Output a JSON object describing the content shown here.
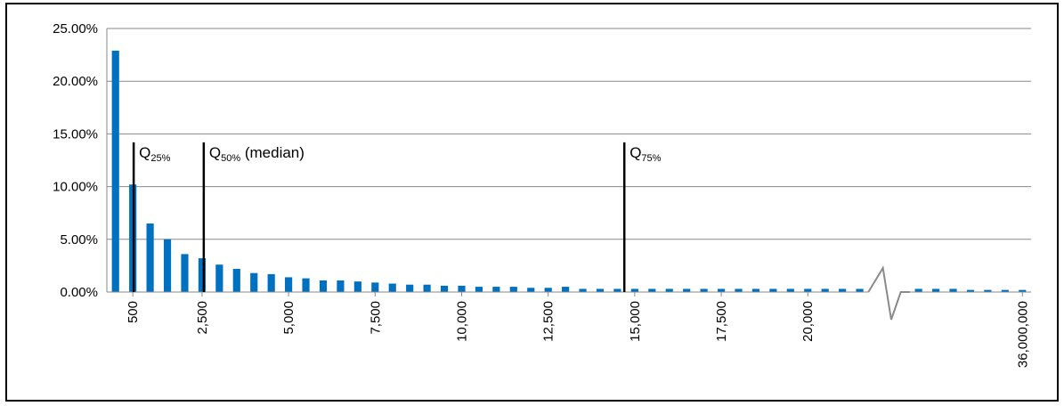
{
  "chart_data": {
    "type": "bar",
    "title": "",
    "xlabel": "",
    "ylabel": "",
    "ylim": [
      0,
      25
    ],
    "y_ticks": [
      "0.00%",
      "5.00%",
      "10.00%",
      "15.00%",
      "20.00%",
      "25.00%"
    ],
    "y_tick_values": [
      0,
      5,
      10,
      15,
      20,
      25
    ],
    "grid": "horizontal",
    "legend": "none",
    "bar_color": "#0070C0",
    "x_tick_labels": [
      {
        "label": "500",
        "bar_index": 1
      },
      {
        "label": "2,500",
        "bar_index": 5
      },
      {
        "label": "5,000",
        "bar_index": 10
      },
      {
        "label": "7,500",
        "bar_index": 15
      },
      {
        "label": "10,000",
        "bar_index": 20
      },
      {
        "label": "12,500",
        "bar_index": 25
      },
      {
        "label": "15,000",
        "bar_index": 30
      },
      {
        "label": "17,500",
        "bar_index": 35
      },
      {
        "label": "20,000",
        "bar_index": 40
      },
      {
        "label": "36,000,000",
        "bar_index": 50
      }
    ],
    "axis_break_after_index": 43,
    "values": [
      22.9,
      10.2,
      6.5,
      5.0,
      3.6,
      3.2,
      2.6,
      2.2,
      1.8,
      1.7,
      1.4,
      1.3,
      1.1,
      1.1,
      1.0,
      0.9,
      0.8,
      0.7,
      0.7,
      0.6,
      0.6,
      0.5,
      0.5,
      0.5,
      0.4,
      0.4,
      0.5,
      0.3,
      0.3,
      0.3,
      0.3,
      0.3,
      0.3,
      0.3,
      0.3,
      0.3,
      0.3,
      0.3,
      0.3,
      0.3,
      0.3,
      0.3,
      0.3,
      0.3,
      0.3,
      0.3,
      0.3,
      0.2,
      0.2,
      0.2,
      0.2
    ],
    "quantiles": [
      {
        "name": "Q",
        "sub": "25%",
        "extra": "",
        "position": 1.05
      },
      {
        "name": "Q",
        "sub": "50%",
        "extra": " (median)",
        "position": 5.1
      },
      {
        "name": "Q",
        "sub": "75%",
        "extra": "",
        "position": 29.4
      }
    ],
    "quantile_line_top_value": 14.2
  }
}
